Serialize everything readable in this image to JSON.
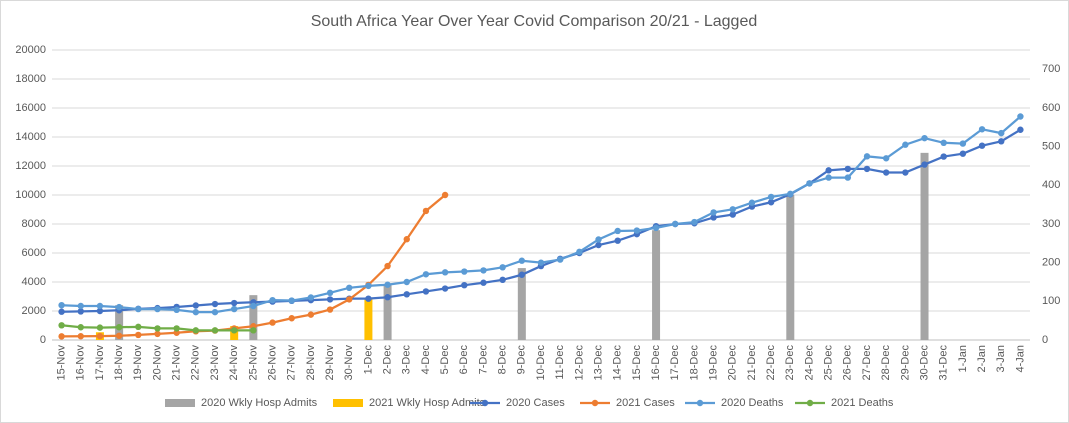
{
  "chart_data": {
    "type": "combo",
    "title": "South Africa Year Over Year Covid Comparison 20/21 - Lagged",
    "categories": [
      "15-Nov",
      "16-Nov",
      "17-Nov",
      "18-Nov",
      "19-Nov",
      "20-Nov",
      "21-Nov",
      "22-Nov",
      "23-Nov",
      "24-Nov",
      "25-Nov",
      "26-Nov",
      "27-Nov",
      "28-Nov",
      "29-Nov",
      "30-Nov",
      "1-Dec",
      "2-Dec",
      "3-Dec",
      "4-Dec",
      "5-Dec",
      "6-Dec",
      "7-Dec",
      "8-Dec",
      "9-Dec",
      "10-Dec",
      "11-Dec",
      "12-Dec",
      "13-Dec",
      "14-Dec",
      "15-Dec",
      "16-Dec",
      "17-Dec",
      "18-Dec",
      "19-Dec",
      "20-Dec",
      "21-Dec",
      "22-Dec",
      "23-Dec",
      "24-Dec",
      "25-Dec",
      "26-Dec",
      "27-Dec",
      "28-Dec",
      "29-Dec",
      "30-Dec",
      "31-Dec",
      "1-Jan",
      "2-Jan",
      "3-Jan",
      "4-Jan"
    ],
    "ylim": [
      0,
      20000
    ],
    "yticks": [
      0,
      2000,
      4000,
      6000,
      8000,
      10000,
      12000,
      14000,
      16000,
      18000,
      20000
    ],
    "y2lim": [
      0,
      750
    ],
    "y2ticks": [
      0,
      100,
      200,
      300,
      400,
      500,
      600,
      700
    ],
    "grid": true,
    "legend": "bottom",
    "series": [
      {
        "name": "2020 Wkly Hosp Admits",
        "type": "bar",
        "axis": "y2",
        "color": "#a5a5a5",
        "values": [
          null,
          null,
          null,
          90,
          null,
          null,
          null,
          null,
          null,
          null,
          116,
          null,
          null,
          null,
          null,
          null,
          null,
          142,
          null,
          null,
          null,
          null,
          null,
          null,
          186,
          null,
          null,
          null,
          null,
          null,
          null,
          284,
          null,
          null,
          null,
          null,
          null,
          null,
          375,
          null,
          null,
          null,
          null,
          null,
          null,
          484,
          null,
          null,
          null,
          null,
          null
        ]
      },
      {
        "name": "2021 Wkly Hosp Admits",
        "type": "bar",
        "axis": "y2",
        "color": "#ffc000",
        "values": [
          null,
          null,
          20,
          null,
          null,
          null,
          null,
          null,
          null,
          36,
          null,
          null,
          null,
          null,
          null,
          null,
          108,
          null,
          null,
          null,
          null,
          null,
          null,
          null,
          null,
          null,
          null,
          null,
          null,
          null,
          null,
          null,
          null,
          null,
          null,
          null,
          null,
          null,
          null,
          null,
          null,
          null,
          null,
          null,
          null,
          null,
          null,
          null,
          null,
          null,
          null
        ]
      },
      {
        "name": "2020 Cases",
        "type": "line",
        "color": "#4472c4",
        "values": [
          1950,
          1970,
          2000,
          2050,
          2150,
          2200,
          2280,
          2380,
          2480,
          2550,
          2600,
          2650,
          2700,
          2750,
          2800,
          2850,
          2850,
          2950,
          3150,
          3350,
          3550,
          3780,
          3950,
          4150,
          4500,
          5100,
          5600,
          6000,
          6550,
          6850,
          7300,
          7850,
          8000,
          8050,
          8450,
          8650,
          9200,
          9500,
          10050,
          10800,
          11700,
          11800,
          11800,
          11550,
          11550,
          12100,
          12650,
          12850,
          13400,
          13700,
          14500
        ]
      },
      {
        "name": "2021 Cases",
        "type": "line",
        "color": "#ed7d31",
        "values": [
          250,
          260,
          270,
          290,
          350,
          420,
          500,
          600,
          650,
          800,
          950,
          1200,
          1500,
          1750,
          2100,
          2800,
          3800,
          5100,
          6950,
          8900,
          10000,
          null,
          null,
          null,
          null,
          null,
          null,
          null,
          null,
          null,
          null,
          null,
          null,
          null,
          null,
          null,
          null,
          null,
          null,
          null,
          null,
          null,
          null,
          null,
          null,
          null,
          null,
          null,
          null,
          null,
          null
        ]
      },
      {
        "name": "2020 Deaths",
        "type": "line",
        "axis": "y2",
        "color": "#5b9bd5",
        "values": [
          90,
          88,
          88,
          85,
          80,
          80,
          78,
          72,
          72,
          80,
          88,
          103,
          102,
          110,
          122,
          135,
          140,
          143,
          150,
          170,
          175,
          177,
          180,
          188,
          205,
          200,
          208,
          228,
          260,
          282,
          283,
          290,
          300,
          305,
          330,
          338,
          355,
          370,
          378,
          405,
          420,
          420,
          475,
          470,
          505,
          522,
          510,
          508,
          545,
          535,
          578
        ]
      },
      {
        "name": "2021 Deaths",
        "type": "line",
        "axis": "y2",
        "color": "#70ad47",
        "values": [
          38,
          33,
          32,
          33,
          34,
          30,
          30,
          25,
          25,
          25,
          25,
          null,
          null,
          null,
          null,
          null,
          null,
          null,
          null,
          null,
          null,
          null,
          null,
          null,
          null,
          null,
          null,
          null,
          null,
          null,
          null,
          null,
          null,
          null,
          null,
          null,
          null,
          null,
          null,
          null,
          null,
          null,
          null,
          null,
          null,
          null,
          null,
          null,
          null,
          null,
          null
        ]
      }
    ]
  }
}
